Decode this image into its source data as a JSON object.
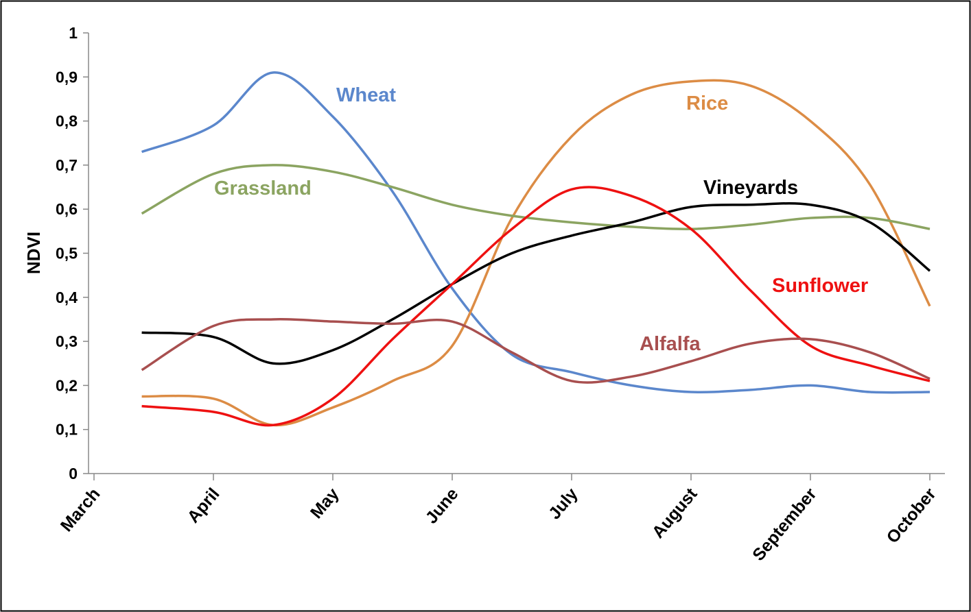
{
  "chart_data": {
    "type": "line",
    "y_label": "NDVI",
    "x": [
      0.4,
      1,
      1.5,
      2,
      2.5,
      3,
      3.5,
      4,
      4.5,
      5,
      5.5,
      6,
      6.5,
      7
    ],
    "xlim": [
      0,
      7
    ],
    "xticks": [
      {
        "value": 0,
        "label": "March"
      },
      {
        "value": 1,
        "label": "April"
      },
      {
        "value": 2,
        "label": "May"
      },
      {
        "value": 3,
        "label": "June"
      },
      {
        "value": 4,
        "label": "July"
      },
      {
        "value": 5,
        "label": "August"
      },
      {
        "value": 6,
        "label": "September"
      },
      {
        "value": 7,
        "label": "October"
      }
    ],
    "ylim": [
      0,
      1
    ],
    "yticks": [
      0,
      {
        "value": 0.1,
        "label": "0,1"
      },
      {
        "value": 0.2,
        "label": "0,2"
      },
      {
        "value": 0.3,
        "label": "0,3"
      },
      {
        "value": 0.4,
        "label": "0,4"
      },
      {
        "value": 0.5,
        "label": "0,5"
      },
      {
        "value": 0.6,
        "label": "0,6"
      },
      {
        "value": 0.7,
        "label": "0,7"
      },
      {
        "value": 0.8,
        "label": "0,8"
      },
      {
        "value": 0.9,
        "label": "0,9"
      },
      1
    ],
    "series": [
      {
        "name": "Wheat",
        "color": "#5b87cc",
        "values": [
          0.73,
          0.79,
          0.91,
          0.81,
          0.64,
          0.42,
          0.27,
          0.23,
          0.2,
          0.185,
          0.19,
          0.2,
          0.185,
          0.185
        ]
      },
      {
        "name": "Rice",
        "color": "#dc8c45",
        "values": [
          0.175,
          0.17,
          0.11,
          0.15,
          0.21,
          0.29,
          0.58,
          0.765,
          0.86,
          0.89,
          0.88,
          0.8,
          0.655,
          0.38
        ]
      },
      {
        "name": "Grassland",
        "color": "#8ba461",
        "values": [
          0.59,
          0.68,
          0.7,
          0.685,
          0.65,
          0.61,
          0.585,
          0.57,
          0.56,
          0.555,
          0.565,
          0.58,
          0.58,
          0.555
        ]
      },
      {
        "name": "Vineyards",
        "color": "#000000",
        "values": [
          0.32,
          0.31,
          0.25,
          0.28,
          0.35,
          0.43,
          0.5,
          0.54,
          0.57,
          0.605,
          0.61,
          0.61,
          0.57,
          0.46
        ]
      },
      {
        "name": "Sunflower",
        "color": "#ee1111",
        "values": [
          0.153,
          0.14,
          0.11,
          0.17,
          0.305,
          0.43,
          0.555,
          0.645,
          0.63,
          0.555,
          0.415,
          0.29,
          0.245,
          0.21
        ]
      },
      {
        "name": "Alfalfa",
        "color": "#a84f4f",
        "values": [
          0.235,
          0.335,
          0.35,
          0.345,
          0.34,
          0.345,
          0.275,
          0.21,
          0.22,
          0.255,
          0.295,
          0.305,
          0.275,
          0.215
        ]
      }
    ]
  }
}
